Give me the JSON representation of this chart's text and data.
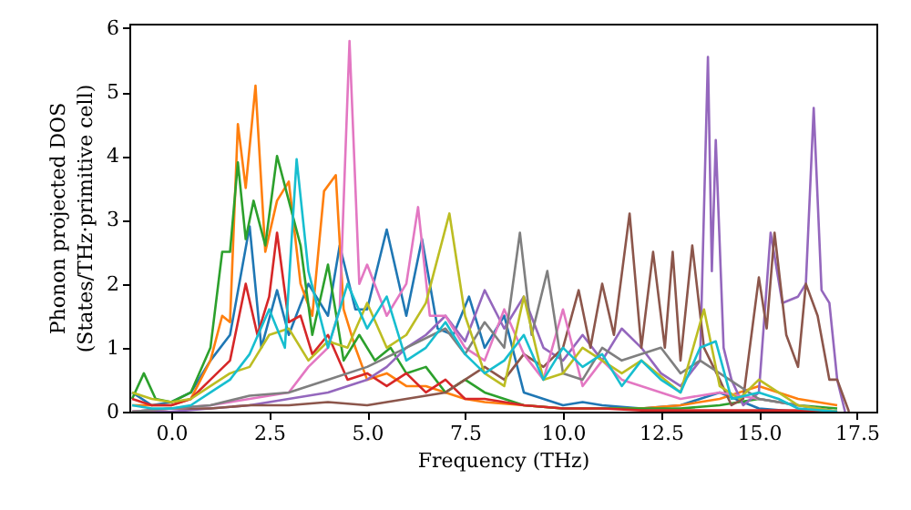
{
  "chart_data": {
    "type": "line",
    "xlabel": "Frequency (THz)",
    "ylabel": "Phonon projected DOS\n(States/THz·primitive cell)",
    "xlim": [
      -1.07,
      18.0
    ],
    "ylim": [
      0,
      6.07
    ],
    "xticks": [
      {
        "value": 0,
        "label": "0.0"
      },
      {
        "value": 2.5,
        "label": "2.5"
      },
      {
        "value": 5,
        "label": "5.0"
      },
      {
        "value": 7.5,
        "label": "7.5"
      },
      {
        "value": 10,
        "label": "10.0"
      },
      {
        "value": 12.5,
        "label": "12.5"
      },
      {
        "value": 15,
        "label": "15.0"
      },
      {
        "value": 17.5,
        "label": "17.5"
      }
    ],
    "yticks": [
      0,
      1,
      2,
      3,
      4,
      5,
      6
    ],
    "grid": false,
    "marker": "none",
    "line_style": "solid",
    "series": [
      {
        "color": "#1f77b4",
        "x": [
          -1,
          -0.5,
          0,
          0.5,
          1,
          1.5,
          2,
          2.3,
          2.7,
          3,
          3.5,
          4,
          4.3,
          4.7,
          5,
          5.5,
          6,
          6.4,
          6.8,
          7.2,
          7.6,
          8,
          8.5,
          9,
          9.5,
          10,
          10.5,
          11,
          12,
          13,
          14,
          15,
          16,
          17
        ],
        "values": [
          0.3,
          0.1,
          0.15,
          0.3,
          0.8,
          1.2,
          2.9,
          1.0,
          1.9,
          1.2,
          2.0,
          1.5,
          2.6,
          1.6,
          1.6,
          2.85,
          1.5,
          2.7,
          1.3,
          1.2,
          1.8,
          1.0,
          1.5,
          0.3,
          0.2,
          0.1,
          0.15,
          0.1,
          0.05,
          0.1,
          0.3,
          0.05,
          0.0,
          0.0
        ]
      },
      {
        "color": "#ff7f0e",
        "x": [
          -1,
          -0.5,
          0,
          0.5,
          1,
          1.3,
          1.5,
          1.7,
          1.9,
          2.15,
          2.4,
          2.7,
          3,
          3.3,
          3.6,
          3.9,
          4.2,
          4.4,
          4.7,
          5,
          5.5,
          6,
          6.5,
          7,
          7.5,
          8,
          9,
          10,
          11,
          12,
          13,
          14,
          15,
          16,
          17
        ],
        "values": [
          0.1,
          0.1,
          0.1,
          0.2,
          0.8,
          1.5,
          1.4,
          4.5,
          3.5,
          5.1,
          2.5,
          3.3,
          3.6,
          2.0,
          1.5,
          3.45,
          3.7,
          1.6,
          1.0,
          0.5,
          0.6,
          0.4,
          0.4,
          0.3,
          0.2,
          0.15,
          0.1,
          0.05,
          0.05,
          0.05,
          0.1,
          0.2,
          0.4,
          0.2,
          0.1
        ]
      },
      {
        "color": "#2ca02c",
        "x": [
          -1,
          -0.7,
          -0.4,
          0,
          0.5,
          1,
          1.3,
          1.5,
          1.7,
          1.9,
          2.1,
          2.4,
          2.7,
          3,
          3.3,
          3.6,
          4,
          4.4,
          4.8,
          5.2,
          5.6,
          6,
          6.5,
          7,
          7.5,
          8,
          8.5,
          9,
          10,
          11,
          12,
          13,
          14,
          15,
          16,
          17
        ],
        "values": [
          0.2,
          0.6,
          0.2,
          0.15,
          0.3,
          1.0,
          2.5,
          2.5,
          3.9,
          2.7,
          3.3,
          2.6,
          4.0,
          3.3,
          2.6,
          1.2,
          2.3,
          0.8,
          1.2,
          0.8,
          1.0,
          0.6,
          0.7,
          0.3,
          0.5,
          0.3,
          0.2,
          0.1,
          0.05,
          0.05,
          0.05,
          0.05,
          0.1,
          0.2,
          0.1,
          0.05
        ]
      },
      {
        "color": "#d62728",
        "x": [
          -1,
          -0.5,
          0,
          0.5,
          1,
          1.5,
          1.9,
          2.2,
          2.5,
          2.7,
          3,
          3.3,
          3.6,
          4,
          4.5,
          5,
          5.5,
          6,
          6.5,
          7,
          7.5,
          8,
          9,
          10,
          11,
          12,
          14,
          16,
          17
        ],
        "values": [
          0.2,
          0.1,
          0.1,
          0.2,
          0.5,
          0.8,
          2.0,
          1.2,
          1.8,
          2.8,
          1.4,
          1.5,
          0.9,
          1.2,
          0.5,
          0.6,
          0.4,
          0.6,
          0.3,
          0.5,
          0.2,
          0.2,
          0.1,
          0.05,
          0.05,
          0.02,
          0.02,
          0.02,
          0.0
        ]
      },
      {
        "color": "#9467bd",
        "x": [
          -1,
          0,
          1,
          2,
          3,
          4,
          5,
          5.5,
          6,
          6.5,
          7,
          7.5,
          8,
          8.5,
          9,
          9.5,
          10,
          10.5,
          11,
          11.5,
          12,
          12.5,
          13,
          13.5,
          13.7,
          13.8,
          13.9,
          14.1,
          14.3,
          14.6,
          15,
          15.3,
          15.6,
          16,
          16.2,
          16.4,
          16.6,
          16.8,
          17,
          17.2
        ],
        "values": [
          0.0,
          0.0,
          0.05,
          0.1,
          0.2,
          0.3,
          0.5,
          0.7,
          1.0,
          1.2,
          1.5,
          1.1,
          1.9,
          1.3,
          1.8,
          1.0,
          0.8,
          1.2,
          0.8,
          1.3,
          1.0,
          0.6,
          0.4,
          0.8,
          5.55,
          2.2,
          4.25,
          1.0,
          0.5,
          0.1,
          0.3,
          2.8,
          1.7,
          1.8,
          2.0,
          4.75,
          1.9,
          1.7,
          0.5,
          0.0
        ]
      },
      {
        "color": "#8c564b",
        "x": [
          -1,
          0,
          1,
          2,
          3,
          4,
          5,
          6,
          7,
          7.5,
          8,
          8.5,
          9,
          9.5,
          10,
          10.4,
          10.7,
          11,
          11.3,
          11.7,
          12,
          12.3,
          12.6,
          12.8,
          13,
          13.3,
          13.6,
          14,
          14.3,
          14.6,
          15,
          15.2,
          15.4,
          15.7,
          16,
          16.2,
          16.5,
          16.8,
          17,
          17.3
        ],
        "values": [
          0.0,
          0.05,
          0.05,
          0.1,
          0.1,
          0.15,
          0.1,
          0.2,
          0.3,
          0.5,
          0.7,
          0.5,
          0.9,
          0.7,
          1.0,
          1.9,
          1.0,
          2.0,
          1.2,
          3.1,
          1.0,
          2.5,
          1.0,
          2.5,
          0.8,
          2.6,
          1.0,
          0.5,
          0.1,
          0.2,
          2.1,
          1.3,
          2.8,
          1.2,
          0.7,
          2.0,
          1.5,
          0.5,
          0.5,
          0.0
        ]
      },
      {
        "color": "#e377c2",
        "x": [
          -1,
          0,
          1,
          2,
          3,
          3.5,
          4,
          4.3,
          4.55,
          4.8,
          5,
          5.5,
          6,
          6.3,
          6.6,
          7,
          7.5,
          8,
          8.5,
          9,
          9.5,
          10,
          10.5,
          11,
          11.5,
          12,
          13,
          14,
          15,
          16,
          17
        ],
        "values": [
          0.0,
          0.05,
          0.1,
          0.2,
          0.3,
          0.7,
          1.0,
          1.6,
          5.8,
          2.0,
          2.3,
          1.5,
          2.0,
          3.2,
          1.5,
          1.5,
          1.0,
          0.8,
          1.6,
          0.9,
          0.5,
          1.6,
          0.4,
          0.8,
          0.5,
          0.4,
          0.2,
          0.3,
          0.2,
          0.1,
          0.0
        ]
      },
      {
        "color": "#7f7f7f",
        "x": [
          -1,
          0,
          1,
          2,
          3,
          4,
          5,
          6,
          7,
          7.5,
          8,
          8.5,
          8.9,
          9.2,
          9.6,
          10,
          10.5,
          11,
          11.5,
          12,
          12.5,
          13,
          13.5,
          14,
          15,
          16,
          17
        ],
        "values": [
          0.0,
          0.05,
          0.1,
          0.25,
          0.3,
          0.5,
          0.7,
          1.0,
          1.3,
          0.9,
          1.4,
          1.0,
          2.8,
          1.2,
          2.2,
          0.6,
          0.5,
          1.0,
          0.8,
          0.9,
          1.0,
          0.6,
          0.8,
          0.6,
          0.2,
          0.1,
          0.0
        ]
      },
      {
        "color": "#bcbd22",
        "x": [
          -1,
          -0.5,
          0,
          0.5,
          1,
          1.5,
          2,
          2.5,
          3,
          3.5,
          4,
          4.5,
          5,
          5.5,
          6,
          6.5,
          7.1,
          7.5,
          8,
          8.5,
          9,
          9.5,
          10,
          10.5,
          11,
          11.5,
          12,
          13,
          13.6,
          14,
          14.5,
          15,
          15.5,
          16,
          17
        ],
        "values": [
          0.3,
          0.2,
          0.15,
          0.2,
          0.4,
          0.6,
          0.7,
          1.2,
          1.3,
          0.8,
          1.1,
          1.0,
          1.7,
          1.0,
          1.2,
          1.7,
          3.1,
          1.5,
          0.6,
          0.4,
          1.8,
          0.5,
          0.6,
          1.0,
          0.8,
          0.6,
          0.8,
          0.3,
          1.6,
          0.4,
          0.2,
          0.5,
          0.3,
          0.1,
          0.0
        ]
      },
      {
        "color": "#17becf",
        "x": [
          -1,
          -0.5,
          0,
          0.5,
          1,
          1.5,
          2,
          2.5,
          2.9,
          3.2,
          3.5,
          4,
          4.5,
          5,
          5.5,
          6,
          6.5,
          7,
          7.5,
          8,
          8.5,
          9,
          9.5,
          10,
          10.5,
          11,
          11.5,
          12,
          12.5,
          13,
          13.5,
          13.9,
          14.3,
          15,
          15.5,
          16,
          17
        ],
        "values": [
          0.1,
          0.05,
          0.05,
          0.1,
          0.3,
          0.5,
          0.9,
          1.6,
          1.0,
          3.95,
          2.2,
          1.0,
          2.0,
          1.3,
          1.8,
          0.8,
          1.0,
          1.4,
          0.9,
          0.6,
          0.8,
          1.2,
          0.5,
          1.0,
          0.7,
          0.9,
          0.4,
          0.8,
          0.5,
          0.3,
          1.0,
          1.1,
          0.2,
          0.3,
          0.2,
          0.05,
          0.0
        ]
      }
    ]
  }
}
